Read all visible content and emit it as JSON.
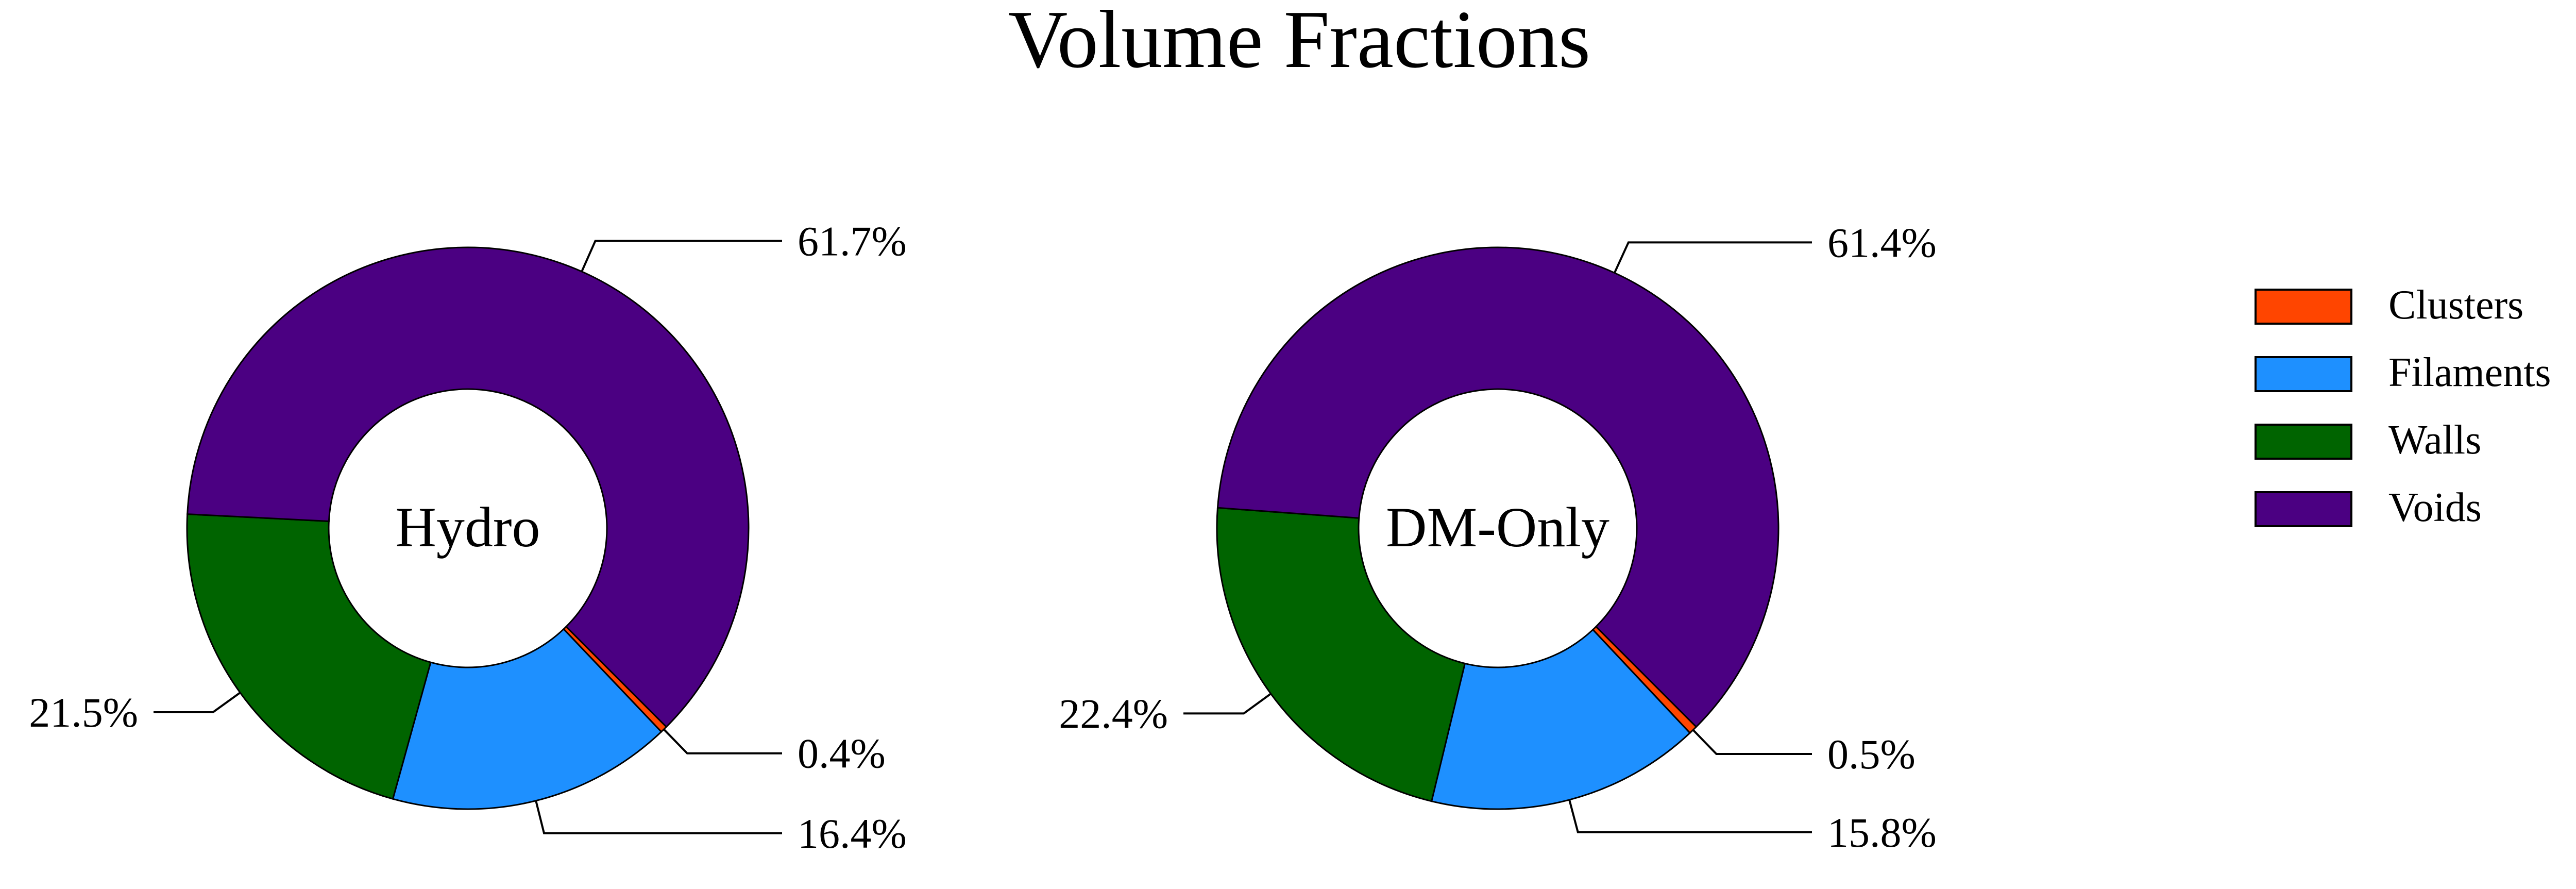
{
  "chart_data": {
    "type": "pie",
    "title": "Volume Fractions",
    "legend_position": "right",
    "categories": [
      "Clusters",
      "Filaments",
      "Walls",
      "Voids"
    ],
    "colors": [
      "#ff4500",
      "#1e90ff",
      "#006400",
      "#4b0082"
    ],
    "series": [
      {
        "name": "Hydro",
        "values": [
          0.4,
          16.4,
          21.5,
          61.7
        ],
        "labels": [
          "0.4%",
          "16.4%",
          "21.5%",
          "61.7%"
        ]
      },
      {
        "name": "DM-Only",
        "values": [
          0.5,
          15.8,
          22.4,
          61.4
        ],
        "labels": [
          "0.5%",
          "15.8%",
          "22.4%",
          "61.4%"
        ]
      }
    ]
  }
}
